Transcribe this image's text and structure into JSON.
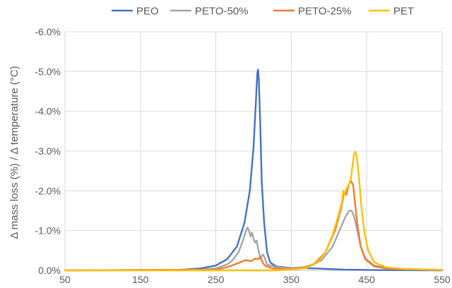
{
  "chart_data": {
    "type": "line",
    "title": "",
    "xlabel": "",
    "ylabel": "Δ mass loss (%)  / Δ temperature (°C)",
    "xlim": [
      50,
      550
    ],
    "ylim": [
      0,
      -6.0
    ],
    "y_axis_reversed": true,
    "grid": true,
    "legend_position": "top",
    "x_ticks": [
      "50",
      "150",
      "250",
      "350",
      "450",
      "550"
    ],
    "y_ticks": [
      "0.0%",
      "-1.0%",
      "-2.0%",
      "-3.0%",
      "-4.0%",
      "-5.0%",
      "-6.0%"
    ],
    "series": [
      {
        "name": "PEO",
        "color": "#4472C4",
        "points": [
          [
            50,
            0
          ],
          [
            200,
            -0.01
          ],
          [
            230,
            -0.05
          ],
          [
            250,
            -0.12
          ],
          [
            265,
            -0.28
          ],
          [
            278,
            -0.6
          ],
          [
            288,
            -1.2
          ],
          [
            295,
            -2.0
          ],
          [
            300,
            -3.1
          ],
          [
            303,
            -4.2
          ],
          [
            305,
            -4.95
          ],
          [
            306,
            -5.05
          ],
          [
            307,
            -4.8
          ],
          [
            309,
            -3.6
          ],
          [
            311,
            -2.2
          ],
          [
            314,
            -1.2
          ],
          [
            318,
            -0.45
          ],
          [
            322,
            -0.2
          ],
          [
            330,
            -0.1
          ],
          [
            350,
            -0.06
          ],
          [
            380,
            -0.05
          ],
          [
            420,
            -0.02
          ],
          [
            450,
            -0.01
          ],
          [
            550,
            0
          ]
        ]
      },
      {
        "name": "PETO-50%",
        "color": "#A5A5A5",
        "points": [
          [
            50,
            0
          ],
          [
            230,
            -0.02
          ],
          [
            250,
            -0.05
          ],
          [
            265,
            -0.15
          ],
          [
            272,
            -0.25
          ],
          [
            280,
            -0.45
          ],
          [
            286,
            -0.75
          ],
          [
            290,
            -1.0
          ],
          [
            292,
            -1.08
          ],
          [
            294,
            -1.0
          ],
          [
            296,
            -0.85
          ],
          [
            298,
            -0.95
          ],
          [
            300,
            -0.8
          ],
          [
            302,
            -0.7
          ],
          [
            304,
            -0.75
          ],
          [
            306,
            -0.55
          ],
          [
            309,
            -0.3
          ],
          [
            312,
            -0.4
          ],
          [
            314,
            -0.35
          ],
          [
            318,
            -0.15
          ],
          [
            330,
            -0.08
          ],
          [
            350,
            -0.06
          ],
          [
            370,
            -0.08
          ],
          [
            390,
            -0.25
          ],
          [
            405,
            -0.6
          ],
          [
            415,
            -1.05
          ],
          [
            422,
            -1.35
          ],
          [
            427,
            -1.5
          ],
          [
            430,
            -1.5
          ],
          [
            433,
            -1.38
          ],
          [
            437,
            -1.05
          ],
          [
            442,
            -0.6
          ],
          [
            448,
            -0.3
          ],
          [
            460,
            -0.12
          ],
          [
            480,
            -0.05
          ],
          [
            550,
            -0.01
          ]
        ]
      },
      {
        "name": "PETO-25%",
        "color": "#ED7D31",
        "points": [
          [
            50,
            0
          ],
          [
            250,
            -0.02
          ],
          [
            265,
            -0.08
          ],
          [
            275,
            -0.15
          ],
          [
            282,
            -0.2
          ],
          [
            288,
            -0.25
          ],
          [
            293,
            -0.25
          ],
          [
            297,
            -0.23
          ],
          [
            300,
            -0.27
          ],
          [
            303,
            -0.3
          ],
          [
            306,
            -0.28
          ],
          [
            309,
            -0.34
          ],
          [
            312,
            -0.2
          ],
          [
            315,
            -0.12
          ],
          [
            325,
            -0.05
          ],
          [
            345,
            -0.03
          ],
          [
            360,
            -0.04
          ],
          [
            380,
            -0.15
          ],
          [
            395,
            -0.45
          ],
          [
            408,
            -1.0
          ],
          [
            416,
            -1.55
          ],
          [
            420,
            -1.95
          ],
          [
            423,
            -1.9
          ],
          [
            426,
            -2.15
          ],
          [
            429,
            -2.25
          ],
          [
            432,
            -2.15
          ],
          [
            435,
            -1.6
          ],
          [
            438,
            -1.1
          ],
          [
            442,
            -0.6
          ],
          [
            448,
            -0.28
          ],
          [
            460,
            -0.1
          ],
          [
            480,
            -0.04
          ],
          [
            550,
            -0.01
          ]
        ]
      },
      {
        "name": "PET",
        "color": "#FFC000",
        "points": [
          [
            50,
            0
          ],
          [
            330,
            0
          ],
          [
            350,
            -0.02
          ],
          [
            370,
            -0.06
          ],
          [
            385,
            -0.2
          ],
          [
            395,
            -0.45
          ],
          [
            405,
            -0.9
          ],
          [
            412,
            -1.35
          ],
          [
            417,
            -1.7
          ],
          [
            419,
            -2.0
          ],
          [
            421,
            -1.9
          ],
          [
            423,
            -2.05
          ],
          [
            426,
            -2.15
          ],
          [
            429,
            -2.3
          ],
          [
            431,
            -2.6
          ],
          [
            433,
            -2.9
          ],
          [
            435,
            -2.98
          ],
          [
            437,
            -2.85
          ],
          [
            440,
            -2.3
          ],
          [
            443,
            -1.6
          ],
          [
            447,
            -0.95
          ],
          [
            452,
            -0.5
          ],
          [
            460,
            -0.2
          ],
          [
            475,
            -0.08
          ],
          [
            500,
            -0.03
          ],
          [
            550,
            -0.01
          ]
        ]
      }
    ]
  }
}
